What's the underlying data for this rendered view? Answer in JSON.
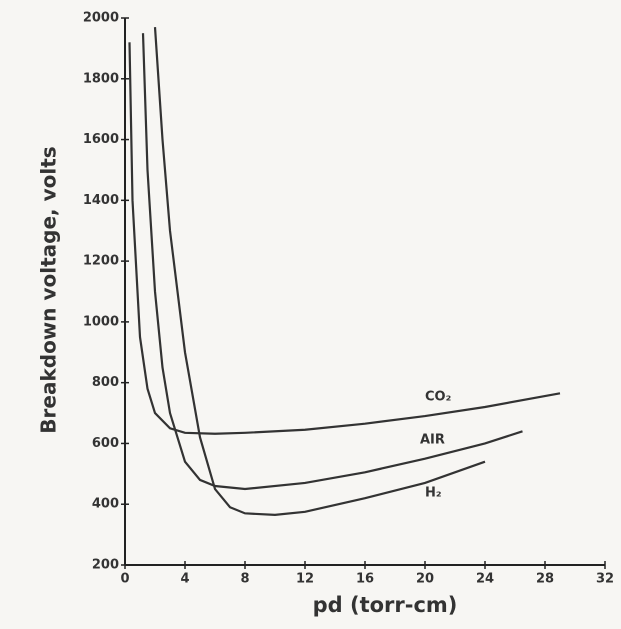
{
  "chart_data": {
    "type": "line",
    "x_label": "pd (torr-cm)",
    "y_label": "Breakdown voltage, volts",
    "xlim": [
      0,
      32
    ],
    "xticks": [
      0,
      4,
      8,
      12,
      16,
      20,
      24,
      28,
      32
    ],
    "ylim": [
      200,
      2000
    ],
    "yticks": [
      200,
      400,
      600,
      800,
      1000,
      1200,
      1400,
      1600,
      1800,
      2000
    ],
    "series": [
      {
        "name": "CO₂",
        "color": "#333333",
        "x": [
          0.3,
          0.5,
          1,
          1.5,
          2,
          3,
          4,
          6,
          8,
          12,
          16,
          20,
          24,
          29
        ],
        "values": [
          1920,
          1400,
          950,
          780,
          700,
          650,
          635,
          632,
          635,
          645,
          665,
          690,
          720,
          765
        ]
      },
      {
        "name": "AIR",
        "color": "#333333",
        "x": [
          1.2,
          1.5,
          2,
          2.5,
          3,
          4,
          5,
          6,
          8,
          12,
          16,
          20,
          24,
          26.5
        ],
        "values": [
          1950,
          1500,
          1100,
          850,
          700,
          540,
          480,
          460,
          450,
          470,
          505,
          550,
          600,
          640
        ]
      },
      {
        "name": "H₂",
        "color": "#333333",
        "x": [
          2,
          2.5,
          3,
          4,
          5,
          6,
          7,
          8,
          10,
          12,
          16,
          20,
          24
        ],
        "values": [
          1970,
          1600,
          1300,
          900,
          620,
          450,
          390,
          370,
          365,
          375,
          420,
          470,
          540
        ]
      }
    ]
  }
}
